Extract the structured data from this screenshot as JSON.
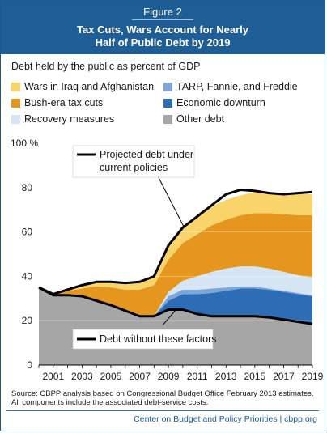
{
  "header": {
    "figure_label": "Figure 2",
    "title_line1": "Tax Cuts, Wars Account for Nearly",
    "title_line2": "Half of Public Debt by 2019"
  },
  "subtitle": "Debt held by the public as percent of GDP",
  "legend": [
    {
      "label": "Wars in Iraq and Afghanistan",
      "color": "#f9d46b"
    },
    {
      "label": "TARP, Fannie, and Freddie",
      "color": "#7ea6d8"
    },
    {
      "label": "Bush-era tax cuts",
      "color": "#e5961f"
    },
    {
      "label": "Economic downturn",
      "color": "#2d6db5"
    },
    {
      "label": "Recovery measures",
      "color": "#d6e5f3"
    },
    {
      "label": "Other debt",
      "color": "#a6a6a6"
    }
  ],
  "annotations": {
    "projected": [
      "Projected debt under",
      "current policies"
    ],
    "without": "Debt without these factors"
  },
  "source_line1": "Source:  CBPP analysis based on Congressional Budget Office February 2013 estimates.",
  "source_line2": "All components include the associated debt-service costs.",
  "footer": "Center on Budget and Policy Priorities | cbpp.org",
  "chart_data": {
    "type": "area",
    "stacked": true,
    "x": [
      2000,
      2001,
      2002,
      2003,
      2004,
      2005,
      2006,
      2007,
      2008,
      2009,
      2010,
      2011,
      2012,
      2013,
      2014,
      2015,
      2016,
      2017,
      2018,
      2019
    ],
    "x_tick_labels": [
      "2001",
      "2003",
      "2005",
      "2007",
      "2009",
      "2011",
      "2013",
      "2015",
      "2017",
      "2019"
    ],
    "x_ticks": [
      2001,
      2003,
      2005,
      2007,
      2009,
      2011,
      2013,
      2015,
      2017,
      2019
    ],
    "y_tick_labels": [
      "0",
      "20",
      "40",
      "60",
      "80",
      "100 %"
    ],
    "y_ticks": [
      0,
      20,
      40,
      60,
      80,
      100
    ],
    "ylim": [
      0,
      100
    ],
    "series": [
      {
        "name": "Other debt",
        "color": "#a6a6a6",
        "values": [
          35,
          31.5,
          31.5,
          31,
          29,
          27,
          24.5,
          22,
          22,
          25,
          25,
          23,
          22,
          22,
          22,
          22,
          21.5,
          20.5,
          19.5,
          18.5
        ]
      },
      {
        "name": "Economic downturn",
        "color": "#2d6db5",
        "values": [
          0,
          0,
          0,
          0,
          0,
          0,
          0,
          0,
          0,
          4,
          7,
          9,
          10.5,
          11.5,
          12.5,
          12.5,
          12.5,
          12.5,
          12.5,
          12.5
        ]
      },
      {
        "name": "TARP, Fannie, and Freddie",
        "color": "#7ea6d8",
        "values": [
          0,
          0,
          0,
          0,
          0,
          0,
          0,
          0,
          0,
          2,
          2,
          2,
          2,
          1.5,
          1,
          1,
          0.5,
          0.5,
          0.5,
          0.5
        ]
      },
      {
        "name": "Recovery measures",
        "color": "#d6e5f3",
        "values": [
          0,
          0,
          0,
          0,
          0,
          0,
          0,
          0,
          0,
          2,
          4,
          6,
          7.5,
          8.5,
          9,
          9,
          9,
          8.5,
          8,
          8
        ]
      },
      {
        "name": "Bush-era tax cuts",
        "color": "#e5961f",
        "values": [
          0,
          0.5,
          2,
          3.5,
          6.5,
          8,
          9.5,
          12,
          14,
          14.5,
          17,
          19,
          21,
          22,
          23,
          24,
          25,
          26,
          27,
          28
        ]
      },
      {
        "name": "Wars in Iraq and Afghanistan",
        "color": "#f9d46b",
        "values": [
          0,
          0,
          0.5,
          1.5,
          2,
          2.5,
          3,
          3.5,
          4,
          6,
          7,
          8,
          8.5,
          9,
          9,
          9.5,
          9.5,
          9.5,
          9.5,
          9.5
        ]
      }
    ],
    "lines": [
      {
        "name": "Projected debt under current policies",
        "values": [
          35,
          32,
          34,
          36,
          37.5,
          37.5,
          37,
          37.5,
          40,
          54,
          62,
          67,
          72,
          77,
          79,
          78.5,
          77.5,
          77,
          77.5,
          78
        ]
      },
      {
        "name": "Debt without these factors",
        "values": [
          35,
          31.5,
          31.5,
          31,
          29,
          27,
          24.5,
          22,
          22,
          25,
          25,
          23,
          22,
          22,
          22,
          22,
          21.5,
          20.5,
          19.5,
          18.5
        ]
      }
    ]
  }
}
